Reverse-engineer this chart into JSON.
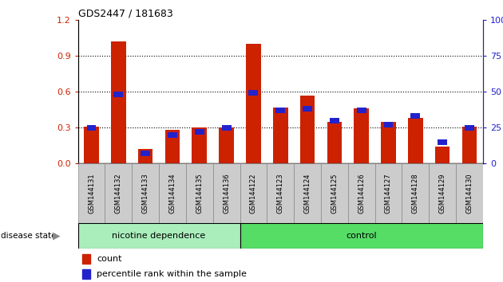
{
  "title": "GDS2447 / 181683",
  "samples": [
    "GSM144131",
    "GSM144132",
    "GSM144133",
    "GSM144134",
    "GSM144135",
    "GSM144136",
    "GSM144122",
    "GSM144123",
    "GSM144124",
    "GSM144125",
    "GSM144126",
    "GSM144127",
    "GSM144128",
    "GSM144129",
    "GSM144130"
  ],
  "count_values": [
    0.31,
    1.02,
    0.12,
    0.28,
    0.3,
    0.3,
    1.0,
    0.47,
    0.57,
    0.35,
    0.46,
    0.35,
    0.38,
    0.14,
    0.31
  ],
  "percentile_values": [
    25,
    48,
    7,
    20,
    22,
    25,
    49,
    37,
    38,
    30,
    37,
    27,
    33,
    15,
    25
  ],
  "nicotine_count": 6,
  "control_count": 9,
  "group1_label": "nicotine dependence",
  "group2_label": "control",
  "disease_state_label": "disease state",
  "count_color": "#cc2200",
  "percentile_color": "#2222cc",
  "legend_count": "count",
  "legend_percentile": "percentile rank within the sample",
  "ylim_left": [
    0,
    1.2
  ],
  "ylim_right": [
    0,
    100
  ],
  "yticks_left": [
    0,
    0.3,
    0.6,
    0.9,
    1.2
  ],
  "yticks_right": [
    0,
    25,
    50,
    75,
    100
  ],
  "group1_color": "#aaeebb",
  "group2_color": "#55dd66",
  "cell_color": "#cccccc",
  "cell_border": "#888888",
  "axis_color_left": "#cc2200",
  "axis_color_right": "#2222cc"
}
